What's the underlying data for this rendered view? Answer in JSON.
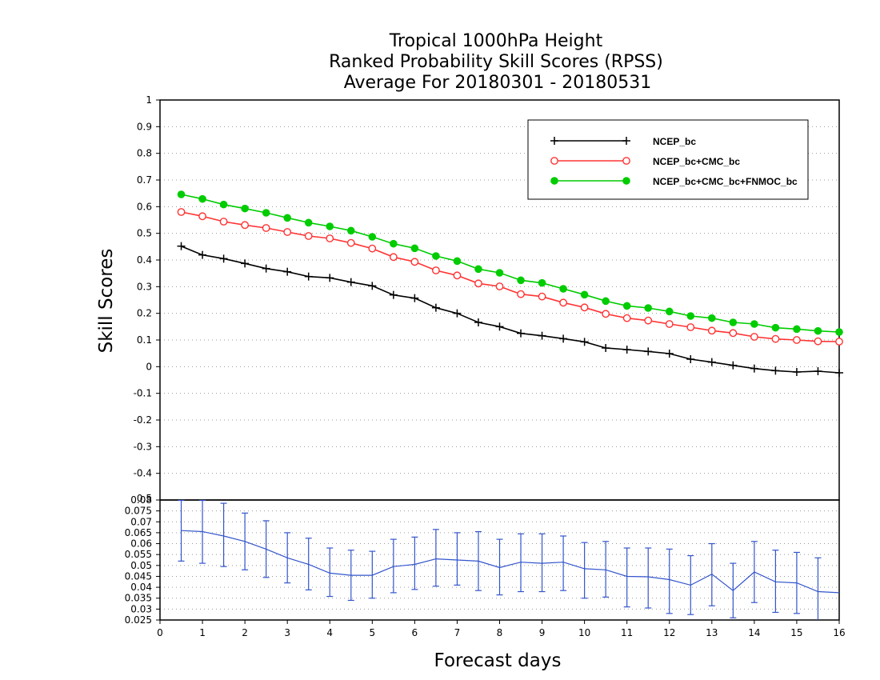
{
  "chart_data": {
    "type": "line",
    "title_lines": [
      "Tropical 1000hPa Height",
      "Ranked Probability Skill Scores (RPSS)",
      "Average For 20180301 - 20180531"
    ],
    "ylabel": "Skill Scores",
    "xlabel": "Forecast days",
    "xlim": [
      0,
      16
    ],
    "x_ticks": [
      "0",
      "1",
      "2",
      "3",
      "4",
      "5",
      "6",
      "7",
      "8",
      "9",
      "10",
      "11",
      "12",
      "13",
      "14",
      "15",
      "16"
    ],
    "main_panel": {
      "ylim": [
        -0.5,
        1.0
      ],
      "y_ticks": [
        "-0.5",
        "-0.4",
        "-0.3",
        "-0.2",
        "-0.1",
        "0",
        "0.1",
        "0.2",
        "0.3",
        "0.4",
        "0.5",
        "0.6",
        "0.7",
        "0.8",
        "0.9",
        "1"
      ],
      "grid": true,
      "legend_position": "top-right",
      "x": [
        0.5,
        1,
        1.5,
        2,
        2.5,
        3,
        3.5,
        4,
        4.5,
        5,
        5.5,
        6,
        6.5,
        7,
        7.5,
        8,
        8.5,
        9,
        9.5,
        10,
        10.5,
        11,
        11.5,
        12,
        12.5,
        13,
        13.5,
        14,
        14.5,
        15,
        15.5,
        16
      ],
      "series": [
        {
          "name": "NCEP_bc",
          "color": "#000000",
          "marker": "plus",
          "values": [
            0.452,
            0.419,
            0.405,
            0.387,
            0.368,
            0.356,
            0.338,
            0.333,
            0.317,
            0.303,
            0.269,
            0.257,
            0.221,
            0.2,
            0.166,
            0.15,
            0.125,
            0.116,
            0.105,
            0.093,
            0.07,
            0.064,
            0.057,
            0.049,
            0.028,
            0.017,
            0.005,
            -0.007,
            -0.015,
            -0.02,
            -0.017,
            -0.023
          ]
        },
        {
          "name": "NCEP_bc+CMC_bc",
          "color": "#ff3333",
          "marker": "open-circle",
          "values": [
            0.58,
            0.564,
            0.544,
            0.531,
            0.52,
            0.505,
            0.49,
            0.481,
            0.464,
            0.443,
            0.411,
            0.393,
            0.361,
            0.342,
            0.312,
            0.301,
            0.272,
            0.263,
            0.24,
            0.222,
            0.198,
            0.182,
            0.173,
            0.16,
            0.148,
            0.135,
            0.126,
            0.112,
            0.104,
            0.1,
            0.095,
            0.094
          ]
        },
        {
          "name": "NCEP_bc+CMC_bc+FNMOC_bc",
          "color": "#00cc00",
          "marker": "filled-circle",
          "values": [
            0.646,
            0.629,
            0.608,
            0.593,
            0.577,
            0.558,
            0.54,
            0.526,
            0.51,
            0.487,
            0.461,
            0.444,
            0.415,
            0.396,
            0.366,
            0.352,
            0.324,
            0.314,
            0.292,
            0.27,
            0.246,
            0.228,
            0.22,
            0.207,
            0.19,
            0.182,
            0.166,
            0.16,
            0.146,
            0.141,
            0.134,
            0.13
          ]
        }
      ]
    },
    "lower_panel": {
      "ylim": [
        0.025,
        0.08
      ],
      "y_ticks": [
        "0.025",
        "0.03",
        "0.035",
        "0.04",
        "0.045",
        "0.05",
        "0.055",
        "0.06",
        "0.065",
        "0.07",
        "0.075",
        "0.08"
      ],
      "top_tick_overlap": "0.5",
      "color": "#3355cc",
      "x": [
        0.5,
        1,
        1.5,
        2,
        2.5,
        3,
        3.5,
        4,
        4.5,
        5,
        5.5,
        6,
        6.5,
        7,
        7.5,
        8,
        8.5,
        9,
        9.5,
        10,
        10.5,
        11,
        11.5,
        12,
        12.5,
        13,
        13.5,
        14,
        14.5,
        15,
        15.5,
        16
      ],
      "values": [
        0.066,
        0.0655,
        0.0635,
        0.061,
        0.0575,
        0.0535,
        0.0505,
        0.0465,
        0.0455,
        0.0455,
        0.0495,
        0.0505,
        0.053,
        0.0525,
        0.052,
        0.049,
        0.0515,
        0.051,
        0.0515,
        0.0485,
        0.048,
        0.045,
        0.0448,
        0.0435,
        0.041,
        0.046,
        0.0385,
        0.047,
        0.0425,
        0.042,
        0.038,
        0.0375
      ],
      "err_low": [
        0.052,
        0.051,
        0.0495,
        0.048,
        0.0445,
        0.042,
        0.0388,
        0.0358,
        0.034,
        0.035,
        0.0375,
        0.039,
        0.0405,
        0.041,
        0.0385,
        0.0365,
        0.038,
        0.038,
        0.0385,
        0.035,
        0.0355,
        0.031,
        0.0305,
        0.028,
        0.0275,
        0.0315,
        0.026,
        0.033,
        0.0285,
        0.028,
        0.025,
        null
      ],
      "err_high": [
        0.08,
        0.08,
        0.0785,
        0.074,
        0.0705,
        0.065,
        0.0625,
        0.058,
        0.057,
        0.0565,
        0.062,
        0.063,
        0.0665,
        0.065,
        0.0655,
        0.062,
        0.0645,
        0.0645,
        0.0635,
        0.0605,
        0.061,
        0.058,
        0.058,
        0.0575,
        0.0545,
        0.06,
        0.051,
        0.061,
        0.057,
        0.056,
        0.0535,
        null
      ]
    }
  }
}
